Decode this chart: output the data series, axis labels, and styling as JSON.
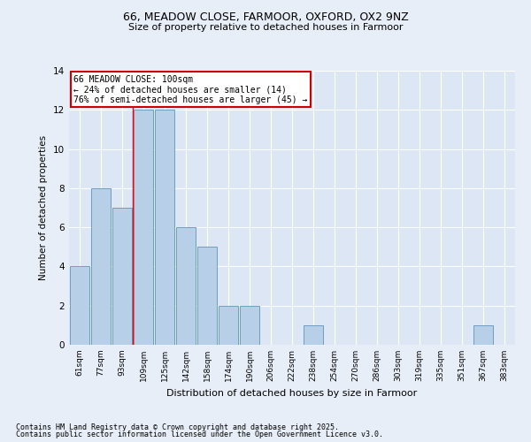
{
  "title1": "66, MEADOW CLOSE, FARMOOR, OXFORD, OX2 9NZ",
  "title2": "Size of property relative to detached houses in Farmoor",
  "xlabel": "Distribution of detached houses by size in Farmoor",
  "ylabel": "Number of detached properties",
  "categories": [
    "61sqm",
    "77sqm",
    "93sqm",
    "109sqm",
    "125sqm",
    "142sqm",
    "158sqm",
    "174sqm",
    "190sqm",
    "206sqm",
    "222sqm",
    "238sqm",
    "254sqm",
    "270sqm",
    "286sqm",
    "303sqm",
    "319sqm",
    "335sqm",
    "351sqm",
    "367sqm",
    "383sqm"
  ],
  "values": [
    4,
    8,
    7,
    12,
    12,
    6,
    5,
    2,
    2,
    0,
    0,
    1,
    0,
    0,
    0,
    0,
    0,
    0,
    0,
    1,
    0
  ],
  "bar_color": "#b8cfe8",
  "bar_edge_color": "#6e9ec0",
  "red_line_x": 2.5,
  "annotation_text": "66 MEADOW CLOSE: 100sqm\n← 24% of detached houses are smaller (14)\n76% of semi-detached houses are larger (45) →",
  "annotation_box_color": "#ffffff",
  "annotation_box_edge": "#cc0000",
  "ylim": [
    0,
    14
  ],
  "yticks": [
    0,
    2,
    4,
    6,
    8,
    10,
    12,
    14
  ],
  "footer1": "Contains HM Land Registry data © Crown copyright and database right 2025.",
  "footer2": "Contains public sector information licensed under the Open Government Licence v3.0.",
  "bg_color": "#e8eef7",
  "plot_bg_color": "#dce6f5"
}
